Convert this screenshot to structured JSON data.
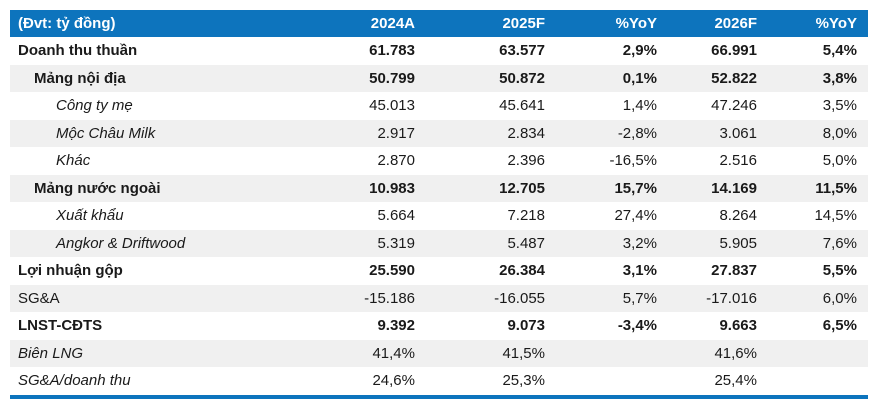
{
  "chart_data": {
    "type": "table",
    "title": "",
    "unit_label": "(Đvt: tỷ đồng)",
    "columns": [
      "2024A",
      "2025F",
      "%YoY",
      "2026F",
      "%YoY"
    ],
    "rows": [
      {
        "label": "Doanh thu thuần",
        "indent": 0,
        "style": "bold",
        "values": [
          "61.783",
          "63.577",
          "2,9%",
          "66.991",
          "5,4%"
        ]
      },
      {
        "label": "Mảng nội địa",
        "indent": 1,
        "style": "bold",
        "values": [
          "50.799",
          "50.872",
          "0,1%",
          "52.822",
          "3,8%"
        ]
      },
      {
        "label": "Công ty mẹ",
        "indent": 2,
        "style": "italic",
        "values": [
          "45.013",
          "45.641",
          "1,4%",
          "47.246",
          "3,5%"
        ]
      },
      {
        "label": "Mộc Châu Milk",
        "indent": 2,
        "style": "italic",
        "values": [
          "2.917",
          "2.834",
          "-2,8%",
          "3.061",
          "8,0%"
        ]
      },
      {
        "label": "Khác",
        "indent": 2,
        "style": "italic",
        "values": [
          "2.870",
          "2.396",
          "-16,5%",
          "2.516",
          "5,0%"
        ]
      },
      {
        "label": "Mảng nước ngoài",
        "indent": 1,
        "style": "bold",
        "values": [
          "10.983",
          "12.705",
          "15,7%",
          "14.169",
          "11,5%"
        ]
      },
      {
        "label": "Xuất khẩu",
        "indent": 2,
        "style": "italic",
        "values": [
          "5.664",
          "7.218",
          "27,4%",
          "8.264",
          "14,5%"
        ]
      },
      {
        "label": "Angkor & Driftwood",
        "indent": 2,
        "style": "italic",
        "values": [
          "5.319",
          "5.487",
          "3,2%",
          "5.905",
          "7,6%"
        ]
      },
      {
        "label": "Lợi nhuận gộp",
        "indent": 0,
        "style": "bold",
        "values": [
          "25.590",
          "26.384",
          "3,1%",
          "27.837",
          "5,5%"
        ]
      },
      {
        "label": "SG&A",
        "indent": 0,
        "style": "regular",
        "values": [
          "-15.186",
          "-16.055",
          "5,7%",
          "-17.016",
          "6,0%"
        ]
      },
      {
        "label": "LNST-CĐTS",
        "indent": 0,
        "style": "bold",
        "values": [
          "9.392",
          "9.073",
          "-3,4%",
          "9.663",
          "6,5%"
        ]
      },
      {
        "label": "Biên LNG",
        "indent": 0,
        "style": "italic",
        "values": [
          "41,4%",
          "41,5%",
          "",
          "41,6%",
          ""
        ]
      },
      {
        "label": "SG&A/doanh thu",
        "indent": 0,
        "style": "italic",
        "values": [
          "24,6%",
          "25,3%",
          "",
          "25,4%",
          ""
        ]
      }
    ],
    "layout": {
      "stripe_pattern": "alternating, gray on even rows (2nd, 4th, ...)",
      "legend": "none",
      "grid": "off"
    },
    "colors": {
      "header_bg": "#0d74bd",
      "header_text": "#ffffff",
      "stripe_bg": "#f0f0f0",
      "bottom_rule": "#0d74bd",
      "body_text": "#1a1a1a"
    }
  }
}
